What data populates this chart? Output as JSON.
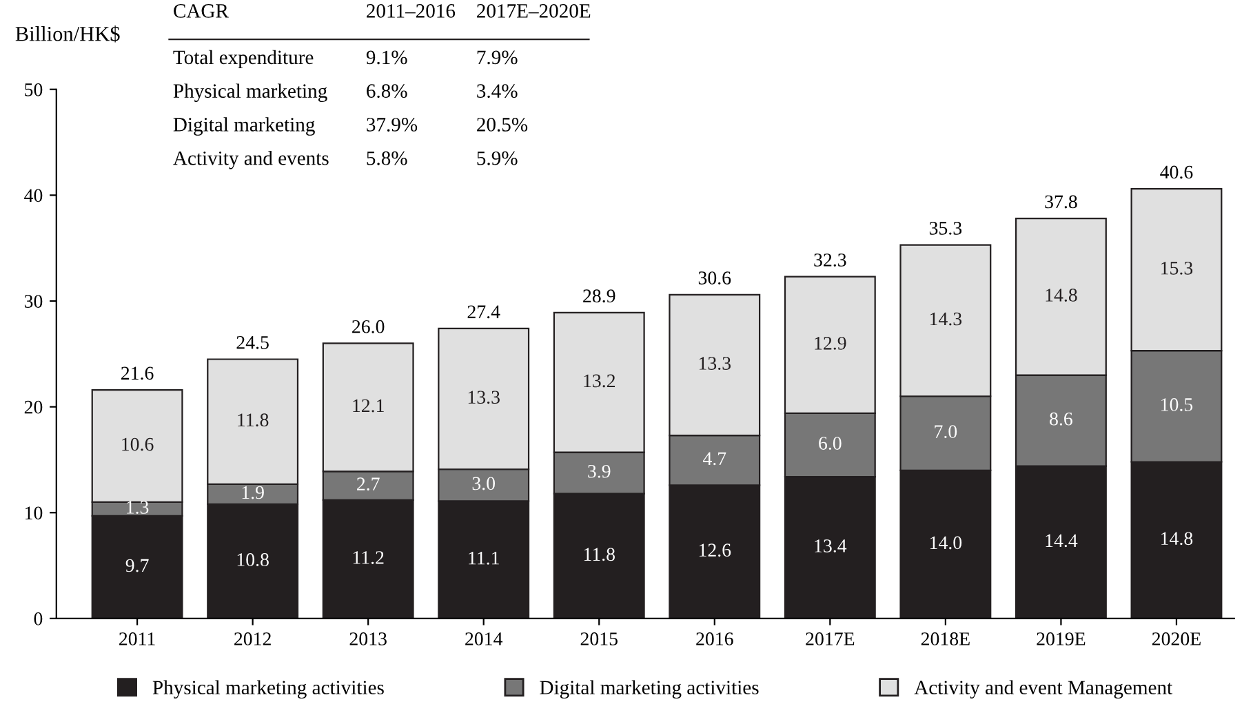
{
  "chart_data": {
    "type": "bar",
    "stacked": true,
    "ylabel": "Billion/HK$",
    "categories": [
      "2011",
      "2012",
      "2013",
      "2014",
      "2015",
      "2016",
      "2017E",
      "2018E",
      "2019E",
      "2020E"
    ],
    "series": [
      {
        "name": "Physical marketing activities",
        "color": "#231f20",
        "values": [
          9.7,
          10.8,
          11.2,
          11.1,
          11.8,
          12.6,
          13.4,
          14.0,
          14.4,
          14.8
        ],
        "value_labels": [
          "9.7",
          "10.8",
          "11.2",
          "11.1",
          "11.8",
          "12.6",
          "13.4",
          "14.0",
          "14.4",
          "14.8"
        ]
      },
      {
        "name": "Digital marketing activities",
        "color": "#777777",
        "values": [
          1.3,
          1.9,
          2.7,
          3.0,
          3.9,
          4.7,
          6.0,
          7.0,
          8.6,
          10.5
        ],
        "value_labels": [
          "1.3",
          "1.9",
          "2.7",
          "3.0",
          "3.9",
          "4.7",
          "6.0",
          "7.0",
          "8.6",
          "10.5"
        ]
      },
      {
        "name": "Activity and event Management",
        "color": "#e0e0e0",
        "values": [
          10.6,
          11.8,
          12.1,
          13.3,
          13.2,
          13.3,
          12.9,
          14.3,
          14.8,
          15.3
        ],
        "value_labels": [
          "10.6",
          "11.8",
          "12.1",
          "13.3",
          "13.2",
          "13.3",
          "12.9",
          "14.3",
          "14.8",
          "15.3"
        ]
      }
    ],
    "totals": [
      "21.6",
      "24.5",
      "26.0",
      "27.4",
      "28.9",
      "30.6",
      "32.3",
      "35.3",
      "37.8",
      "40.6"
    ],
    "ylim": [
      0,
      50
    ],
    "yticks": [
      0,
      10,
      20,
      30,
      40,
      50
    ],
    "grid": false,
    "legend": "bottom",
    "annotations": [
      "CAGR",
      "2011–2016",
      "2017E–2020E",
      "Total expenditure",
      "9.1%",
      "7.9%",
      "Physical marketing",
      "6.8%",
      "3.4%",
      "Digital marketing",
      "37.9%",
      "20.5%",
      "Activity and events",
      "5.8%",
      "5.9%"
    ]
  }
}
